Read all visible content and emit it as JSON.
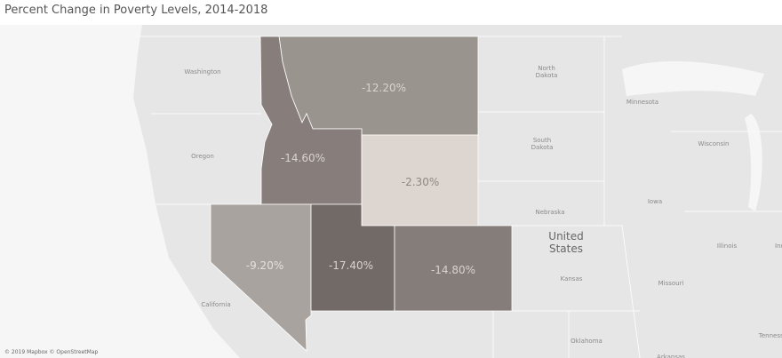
{
  "title": "Percent Change in Poverty Levels, 2014-2018",
  "map": {
    "regions": [
      {
        "value": -12.2,
        "value_label": "-12.20%",
        "color": "#9a948f"
      },
      {
        "value": -14.6,
        "value_label": "-14.60%",
        "color": "#877e7b"
      },
      {
        "value": -2.3,
        "value_label": "-2.30%",
        "color": "#ddd5d0"
      },
      {
        "value": -9.2,
        "value_label": "-9.20%",
        "color": "#a8a39e"
      },
      {
        "value": -17.4,
        "value_label": "-17.40%",
        "color": "#726a67"
      },
      {
        "value": -14.8,
        "value_label": "-14.80%",
        "color": "#857d79"
      }
    ],
    "basemap_labels": [
      "Washington",
      "Oregon",
      "California",
      "North Dakota",
      "South Dakota",
      "Nebraska",
      "Minnesota",
      "Wisconsin",
      "Iowa",
      "Illinois",
      "Indiana",
      "Missouri",
      "Kansas",
      "Oklahoma",
      "Arkansas",
      "Tennessee",
      "United States"
    ],
    "attribution": "© 2019 Mapbox © OpenStreetMap"
  }
}
